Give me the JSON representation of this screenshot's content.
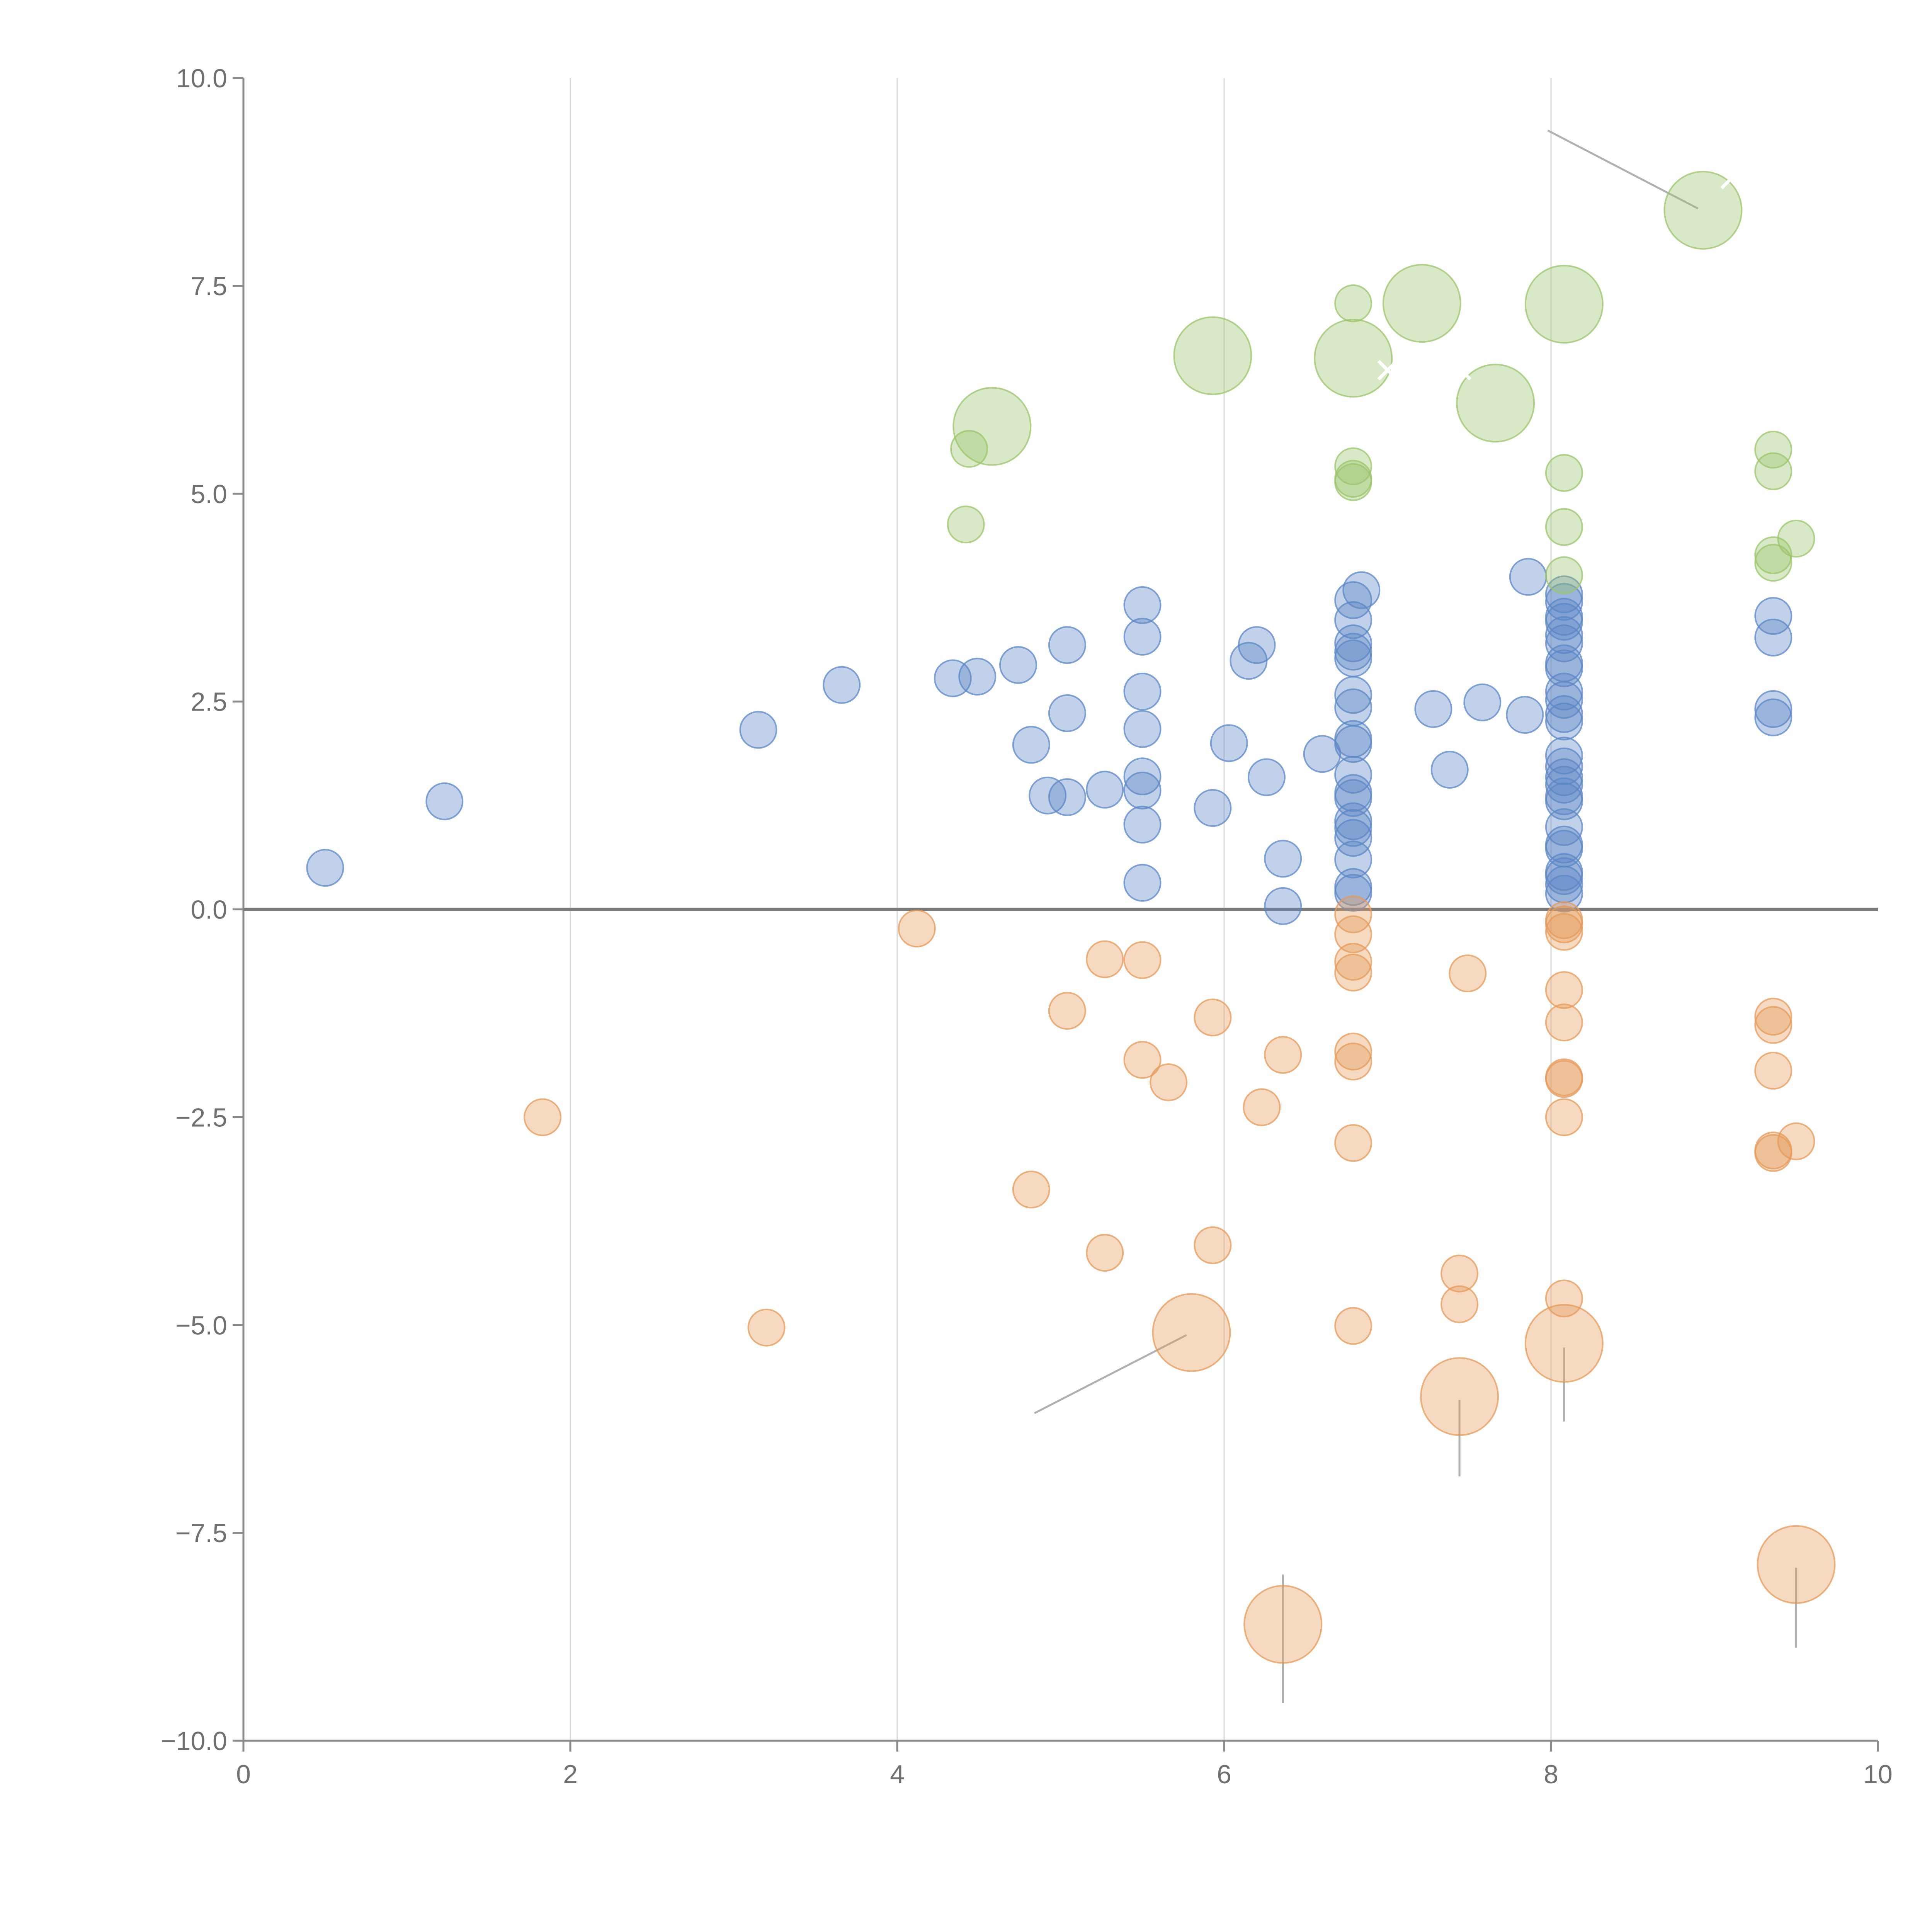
{
  "chart_data": {
    "type": "scatter",
    "title": "",
    "xlabel": "",
    "ylabel": "",
    "xlim": [
      0,
      10
    ],
    "ylim": [
      -10,
      10
    ],
    "x_ticks": [
      0,
      2,
      4,
      6,
      8,
      10
    ],
    "x_tick_labels": [
      "0",
      "2",
      "4",
      "6",
      "8",
      "10"
    ],
    "y_ticks": [
      10,
      7.5,
      5,
      2.5,
      0,
      -2.5,
      -5,
      -7.5,
      -10
    ],
    "y_tick_labels": [
      "10.0",
      "7.5",
      "5.0",
      "2.5",
      "0.0",
      "−2.5",
      "−5.0",
      "−7.5",
      "−10.0"
    ],
    "vertical_grid": true,
    "zero_line": true,
    "colors": {
      "blue": "#5b87c6",
      "green": "#9bc46b",
      "orange": "#e59a5a"
    },
    "series": [
      {
        "name": "blue",
        "color": "#5b87c6",
        "points": [
          {
            "x": 0.5,
            "y": 0.5
          },
          {
            "x": 1.23,
            "y": 1.3
          },
          {
            "x": 3.15,
            "y": 2.16
          },
          {
            "x": 3.66,
            "y": 2.7
          },
          {
            "x": 4.34,
            "y": 2.78
          },
          {
            "x": 4.49,
            "y": 2.8
          },
          {
            "x": 4.74,
            "y": 2.94
          },
          {
            "x": 5.04,
            "y": 3.18
          },
          {
            "x": 5.04,
            "y": 2.36
          },
          {
            "x": 4.82,
            "y": 1.98
          },
          {
            "x": 4.92,
            "y": 1.37
          },
          {
            "x": 5.04,
            "y": 1.35
          },
          {
            "x": 5.27,
            "y": 1.44
          },
          {
            "x": 5.5,
            "y": 3.66
          },
          {
            "x": 5.5,
            "y": 3.28
          },
          {
            "x": 5.5,
            "y": 2.62
          },
          {
            "x": 5.5,
            "y": 2.17
          },
          {
            "x": 5.5,
            "y": 1.6
          },
          {
            "x": 5.5,
            "y": 1.43
          },
          {
            "x": 5.5,
            "y": 1.02
          },
          {
            "x": 5.5,
            "y": 0.32
          },
          {
            "x": 5.93,
            "y": 1.22
          },
          {
            "x": 6.03,
            "y": 2.0
          },
          {
            "x": 6.15,
            "y": 2.99
          },
          {
            "x": 6.2,
            "y": 3.18
          },
          {
            "x": 6.26,
            "y": 1.59
          },
          {
            "x": 6.36,
            "y": 0.61
          },
          {
            "x": 6.36,
            "y": 0.04
          },
          {
            "x": 6.6,
            "y": 1.87
          },
          {
            "x": 6.79,
            "y": 3.72
          },
          {
            "x": 6.79,
            "y": 3.48
          },
          {
            "x": 6.79,
            "y": 3.2
          },
          {
            "x": 6.79,
            "y": 3.1
          },
          {
            "x": 6.79,
            "y": 3.02
          },
          {
            "x": 6.79,
            "y": 2.58
          },
          {
            "x": 6.79,
            "y": 2.43
          },
          {
            "x": 6.79,
            "y": 2.05
          },
          {
            "x": 6.79,
            "y": 1.99
          },
          {
            "x": 6.79,
            "y": 1.62
          },
          {
            "x": 6.79,
            "y": 1.4
          },
          {
            "x": 6.79,
            "y": 1.34
          },
          {
            "x": 6.79,
            "y": 1.06
          },
          {
            "x": 6.79,
            "y": 0.98
          },
          {
            "x": 6.79,
            "y": 0.86
          },
          {
            "x": 6.79,
            "y": 0.6
          },
          {
            "x": 6.79,
            "y": 0.27
          },
          {
            "x": 6.79,
            "y": 0.2
          },
          {
            "x": 6.84,
            "y": 3.84
          },
          {
            "x": 7.28,
            "y": 2.41
          },
          {
            "x": 7.38,
            "y": 1.68
          },
          {
            "x": 7.58,
            "y": 2.49
          },
          {
            "x": 7.84,
            "y": 2.34
          },
          {
            "x": 7.86,
            "y": 4.0
          },
          {
            "x": 8.08,
            "y": 3.79
          },
          {
            "x": 8.08,
            "y": 3.7
          },
          {
            "x": 8.08,
            "y": 3.52
          },
          {
            "x": 8.08,
            "y": 3.46
          },
          {
            "x": 8.08,
            "y": 3.3
          },
          {
            "x": 8.08,
            "y": 3.2
          },
          {
            "x": 8.08,
            "y": 2.96
          },
          {
            "x": 8.08,
            "y": 2.9
          },
          {
            "x": 8.08,
            "y": 2.62
          },
          {
            "x": 8.08,
            "y": 2.52
          },
          {
            "x": 8.08,
            "y": 2.35
          },
          {
            "x": 8.08,
            "y": 2.26
          },
          {
            "x": 8.08,
            "y": 1.85
          },
          {
            "x": 8.08,
            "y": 1.72
          },
          {
            "x": 8.08,
            "y": 1.59
          },
          {
            "x": 8.08,
            "y": 1.5
          },
          {
            "x": 8.08,
            "y": 1.36
          },
          {
            "x": 8.08,
            "y": 1.3
          },
          {
            "x": 8.08,
            "y": 0.99
          },
          {
            "x": 8.08,
            "y": 0.78
          },
          {
            "x": 8.08,
            "y": 0.73
          },
          {
            "x": 8.08,
            "y": 0.45
          },
          {
            "x": 8.08,
            "y": 0.4
          },
          {
            "x": 8.08,
            "y": 0.3
          },
          {
            "x": 8.08,
            "y": 0.19
          },
          {
            "x": 9.36,
            "y": 3.53
          },
          {
            "x": 9.36,
            "y": 3.27
          },
          {
            "x": 9.36,
            "y": 2.41
          },
          {
            "x": 9.36,
            "y": 2.31
          }
        ]
      },
      {
        "name": "green",
        "color": "#9bc46b",
        "points": [
          {
            "x": 4.44,
            "y": 5.54
          },
          {
            "x": 4.42,
            "y": 4.63
          },
          {
            "x": 6.79,
            "y": 7.29
          },
          {
            "x": 6.79,
            "y": 5.33
          },
          {
            "x": 6.79,
            "y": 5.18
          },
          {
            "x": 6.79,
            "y": 5.14
          },
          {
            "x": 8.08,
            "y": 5.25
          },
          {
            "x": 8.08,
            "y": 4.6
          },
          {
            "x": 8.08,
            "y": 4.02
          },
          {
            "x": 9.36,
            "y": 5.53
          },
          {
            "x": 9.36,
            "y": 5.27
          },
          {
            "x": 9.36,
            "y": 4.26
          },
          {
            "x": 9.36,
            "y": 4.17
          },
          {
            "x": 9.5,
            "y": 4.46
          }
        ]
      },
      {
        "name": "green-large",
        "color": "#9bc46b",
        "points": [
          {
            "x": 4.58,
            "y": 5.81
          },
          {
            "x": 5.93,
            "y": 6.66
          },
          {
            "x": 6.79,
            "y": 6.63
          },
          {
            "x": 7.21,
            "y": 7.29
          },
          {
            "x": 7.66,
            "y": 6.09
          },
          {
            "x": 8.08,
            "y": 7.28
          },
          {
            "x": 8.93,
            "y": 8.41
          }
        ]
      },
      {
        "name": "orange",
        "color": "#e59a5a",
        "points": [
          {
            "x": 1.83,
            "y": -2.5
          },
          {
            "x": 3.2,
            "y": -5.03
          },
          {
            "x": 4.12,
            "y": -0.23
          },
          {
            "x": 4.82,
            "y": -3.37
          },
          {
            "x": 5.04,
            "y": -1.22
          },
          {
            "x": 5.27,
            "y": -0.6
          },
          {
            "x": 5.27,
            "y": -4.13
          },
          {
            "x": 5.5,
            "y": -0.61
          },
          {
            "x": 5.5,
            "y": -1.81
          },
          {
            "x": 5.66,
            "y": -2.08
          },
          {
            "x": 5.93,
            "y": -1.3
          },
          {
            "x": 5.93,
            "y": -4.04
          },
          {
            "x": 6.23,
            "y": -2.38
          },
          {
            "x": 6.36,
            "y": -1.75
          },
          {
            "x": 6.79,
            "y": -0.06
          },
          {
            "x": 6.79,
            "y": -0.3
          },
          {
            "x": 6.79,
            "y": -0.63
          },
          {
            "x": 6.79,
            "y": -0.76
          },
          {
            "x": 6.79,
            "y": -1.71
          },
          {
            "x": 6.79,
            "y": -1.83
          },
          {
            "x": 6.79,
            "y": -2.81
          },
          {
            "x": 6.79,
            "y": -5.01
          },
          {
            "x": 7.44,
            "y": -4.38
          },
          {
            "x": 7.44,
            "y": -4.75
          },
          {
            "x": 7.49,
            "y": -0.77
          },
          {
            "x": 8.08,
            "y": -0.13
          },
          {
            "x": 8.08,
            "y": -0.18
          },
          {
            "x": 8.08,
            "y": -0.27
          },
          {
            "x": 8.08,
            "y": -0.97
          },
          {
            "x": 8.08,
            "y": -1.36
          },
          {
            "x": 8.08,
            "y": -2.02
          },
          {
            "x": 8.08,
            "y": -2.04
          },
          {
            "x": 8.08,
            "y": -2.5
          },
          {
            "x": 8.08,
            "y": -4.68
          },
          {
            "x": 9.36,
            "y": -1.29
          },
          {
            "x": 9.36,
            "y": -1.39
          },
          {
            "x": 9.36,
            "y": -1.94
          },
          {
            "x": 9.36,
            "y": -2.9
          },
          {
            "x": 9.36,
            "y": -2.93
          },
          {
            "x": 9.5,
            "y": -2.79
          }
        ]
      },
      {
        "name": "orange-large",
        "color": "#e59a5a",
        "points": [
          {
            "x": 5.8,
            "y": -5.09
          },
          {
            "x": 6.36,
            "y": -8.6
          },
          {
            "x": 7.44,
            "y": -5.86
          },
          {
            "x": 8.08,
            "y": -5.22
          },
          {
            "x": 9.5,
            "y": -7.88
          }
        ]
      }
    ],
    "annotations": [
      {
        "text": "×",
        "x": 9.1,
        "y": 8.6
      },
      {
        "text": "×",
        "x": 7.0,
        "y": 6.3
      },
      {
        "text": "×",
        "x": 7.45,
        "y": 6.3
      }
    ]
  }
}
